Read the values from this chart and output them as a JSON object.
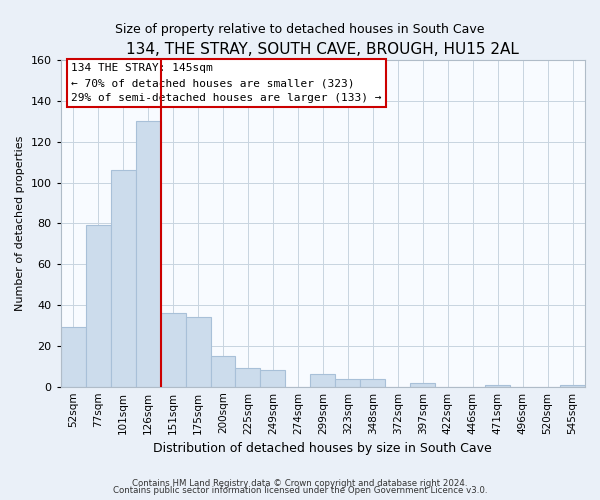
{
  "title": "134, THE STRAY, SOUTH CAVE, BROUGH, HU15 2AL",
  "subtitle": "Size of property relative to detached houses in South Cave",
  "xlabel": "Distribution of detached houses by size in South Cave",
  "ylabel": "Number of detached properties",
  "categories": [
    "52sqm",
    "77sqm",
    "101sqm",
    "126sqm",
    "151sqm",
    "175sqm",
    "200sqm",
    "225sqm",
    "249sqm",
    "274sqm",
    "299sqm",
    "323sqm",
    "348sqm",
    "372sqm",
    "397sqm",
    "422sqm",
    "446sqm",
    "471sqm",
    "496sqm",
    "520sqm",
    "545sqm"
  ],
  "values": [
    29,
    79,
    106,
    130,
    36,
    34,
    15,
    9,
    8,
    0,
    6,
    4,
    4,
    0,
    2,
    0,
    0,
    1,
    0,
    0,
    1
  ],
  "bar_color": "#ccdcec",
  "bar_edge_color": "#a8c0d8",
  "vline_color": "#cc0000",
  "vline_pos": 3.5,
  "ylim": [
    0,
    160
  ],
  "yticks": [
    0,
    20,
    40,
    60,
    80,
    100,
    120,
    140,
    160
  ],
  "annotation_title": "134 THE STRAY: 145sqm",
  "annotation_line1": "← 70% of detached houses are smaller (323)",
  "annotation_line2": "29% of semi-detached houses are larger (133) →",
  "annotation_box_facecolor": "#ffffff",
  "annotation_box_edgecolor": "#cc0000",
  "footer_line1": "Contains HM Land Registry data © Crown copyright and database right 2024.",
  "footer_line2": "Contains public sector information licensed under the Open Government Licence v3.0.",
  "background_color": "#eaf0f8",
  "plot_background": "#f8fbff",
  "grid_color": "#c8d4e0",
  "title_fontsize": 11,
  "subtitle_fontsize": 9,
  "ylabel_fontsize": 8,
  "xlabel_fontsize": 9
}
